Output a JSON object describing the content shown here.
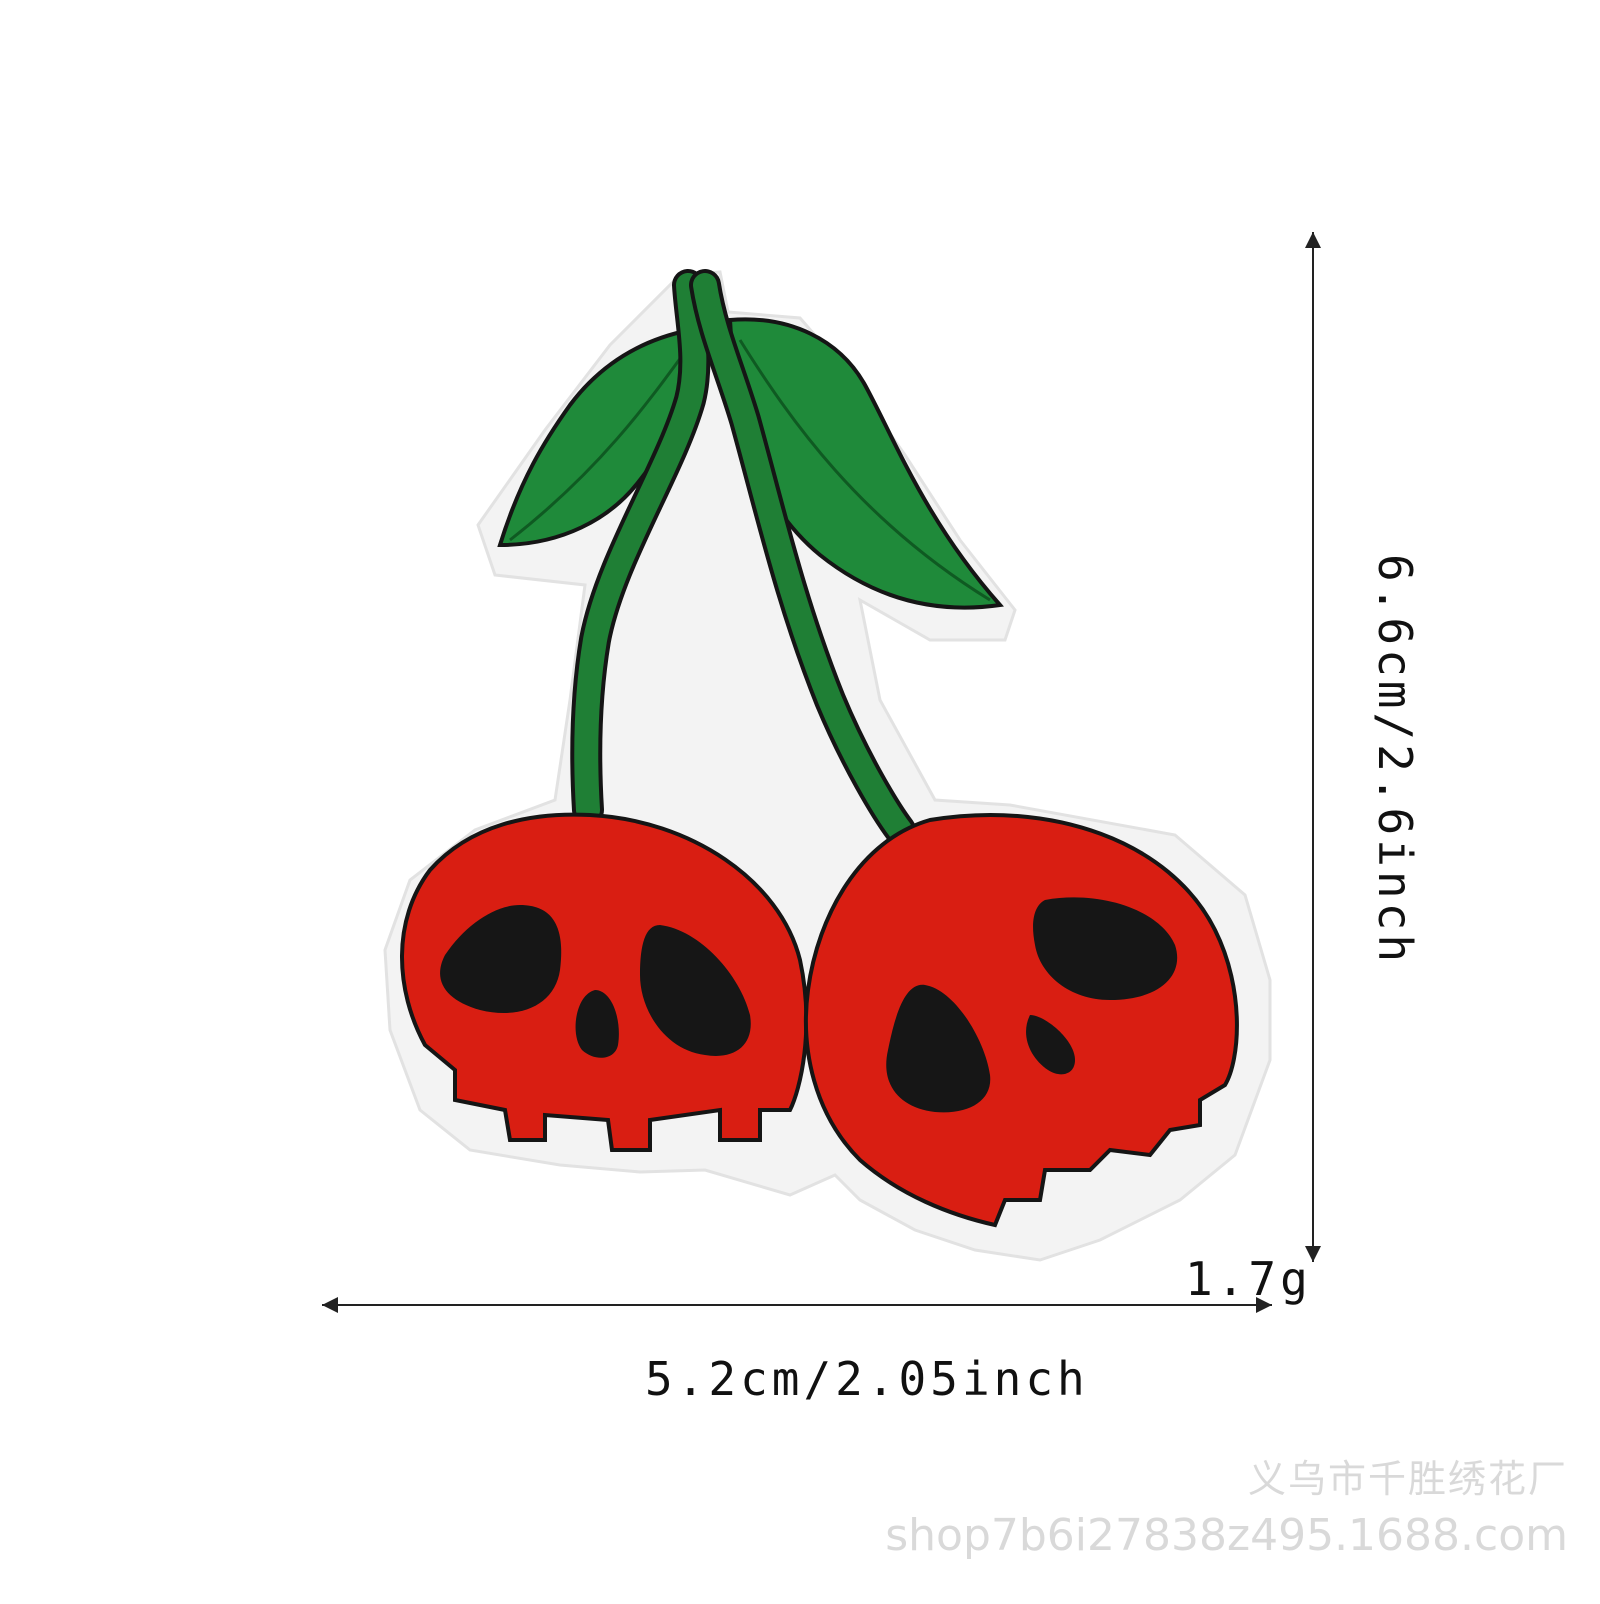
{
  "product": {
    "name": "skull-cherry-embroidered-patch",
    "colors": {
      "backing": "#f4f4f4",
      "leaf": "#1f8a3a",
      "stem": "#1f7f35",
      "cherry": "#d91e12",
      "eyes": "#161616",
      "outline": "#151515"
    }
  },
  "dimensions": {
    "width_text": "5.2cm/2.05inch",
    "height_text": "6.6cm/2.6inch",
    "weight_text": "1.7g"
  },
  "watermark": {
    "shop_name": "义乌市千胜绣花厂",
    "url": "shop7b6i27838z495.1688.com"
  }
}
